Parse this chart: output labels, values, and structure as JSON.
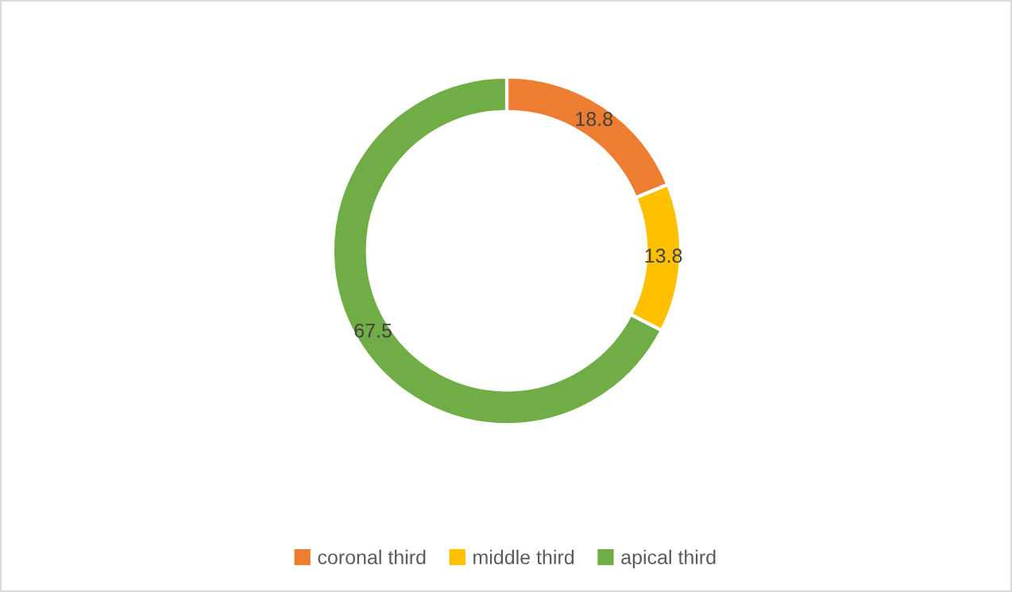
{
  "chart_data": {
    "type": "donut",
    "categories": [
      "coronal third",
      "middle third",
      "apical third"
    ],
    "values": [
      18.8,
      13.8,
      67.5
    ],
    "colors": [
      "#ed7d31",
      "#ffc000",
      "#70ad47"
    ],
    "data_labels": true,
    "legend": "bottom"
  }
}
